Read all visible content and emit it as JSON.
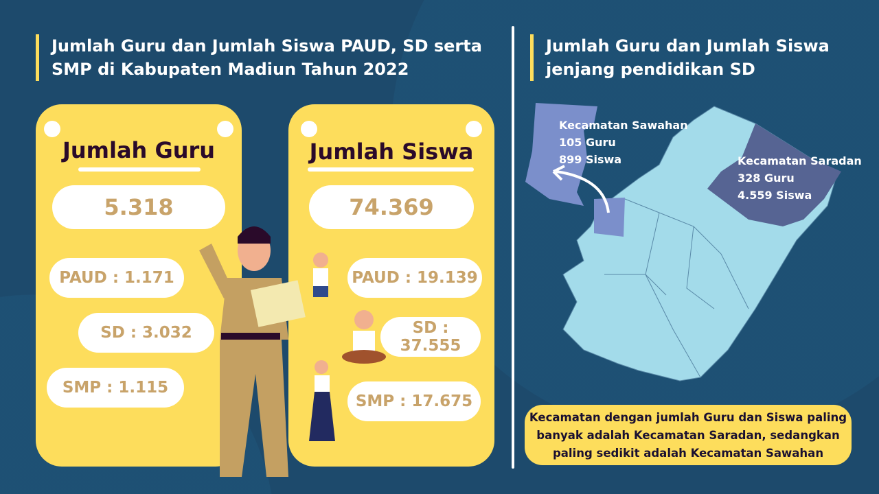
{
  "left": {
    "title": "Jumlah Guru dan Jumlah Siswa PAUD, SD serta SMP di Kabupaten Madiun Tahun 2022",
    "guru": {
      "heading": "Jumlah Guru",
      "total": "5.318",
      "paud": "PAUD : 1.171",
      "sd": "SD : 3.032",
      "smp": "SMP : 1.115"
    },
    "siswa": {
      "heading": "Jumlah Siswa",
      "total": "74.369",
      "paud": "PAUD : 19.139",
      "sd": "SD : 37.555",
      "smp": "SMP : 17.675"
    }
  },
  "right": {
    "title": "Jumlah Guru dan Jumlah Siswa jenjang pendidikan SD",
    "sawahan": {
      "name": "Kecamatan Sawahan",
      "guru": "105 Guru",
      "siswa": "899 Siswa"
    },
    "saradan": {
      "name": "Kecamatan Saradan",
      "guru": "328 Guru",
      "siswa": "4.559 Siswa"
    },
    "note": "Kecamatan dengan jumlah Guru dan Siswa paling banyak adalah Kecamatan Saradan, sedangkan paling sedikit adalah Kecamatan Sawahan"
  },
  "colors": {
    "background": "#1d4a6c",
    "card": "#fddd5c",
    "number": "#c8a36a",
    "map": "#a3dbea",
    "sawahan": "#7b8fcb",
    "saradan": "#566493"
  }
}
